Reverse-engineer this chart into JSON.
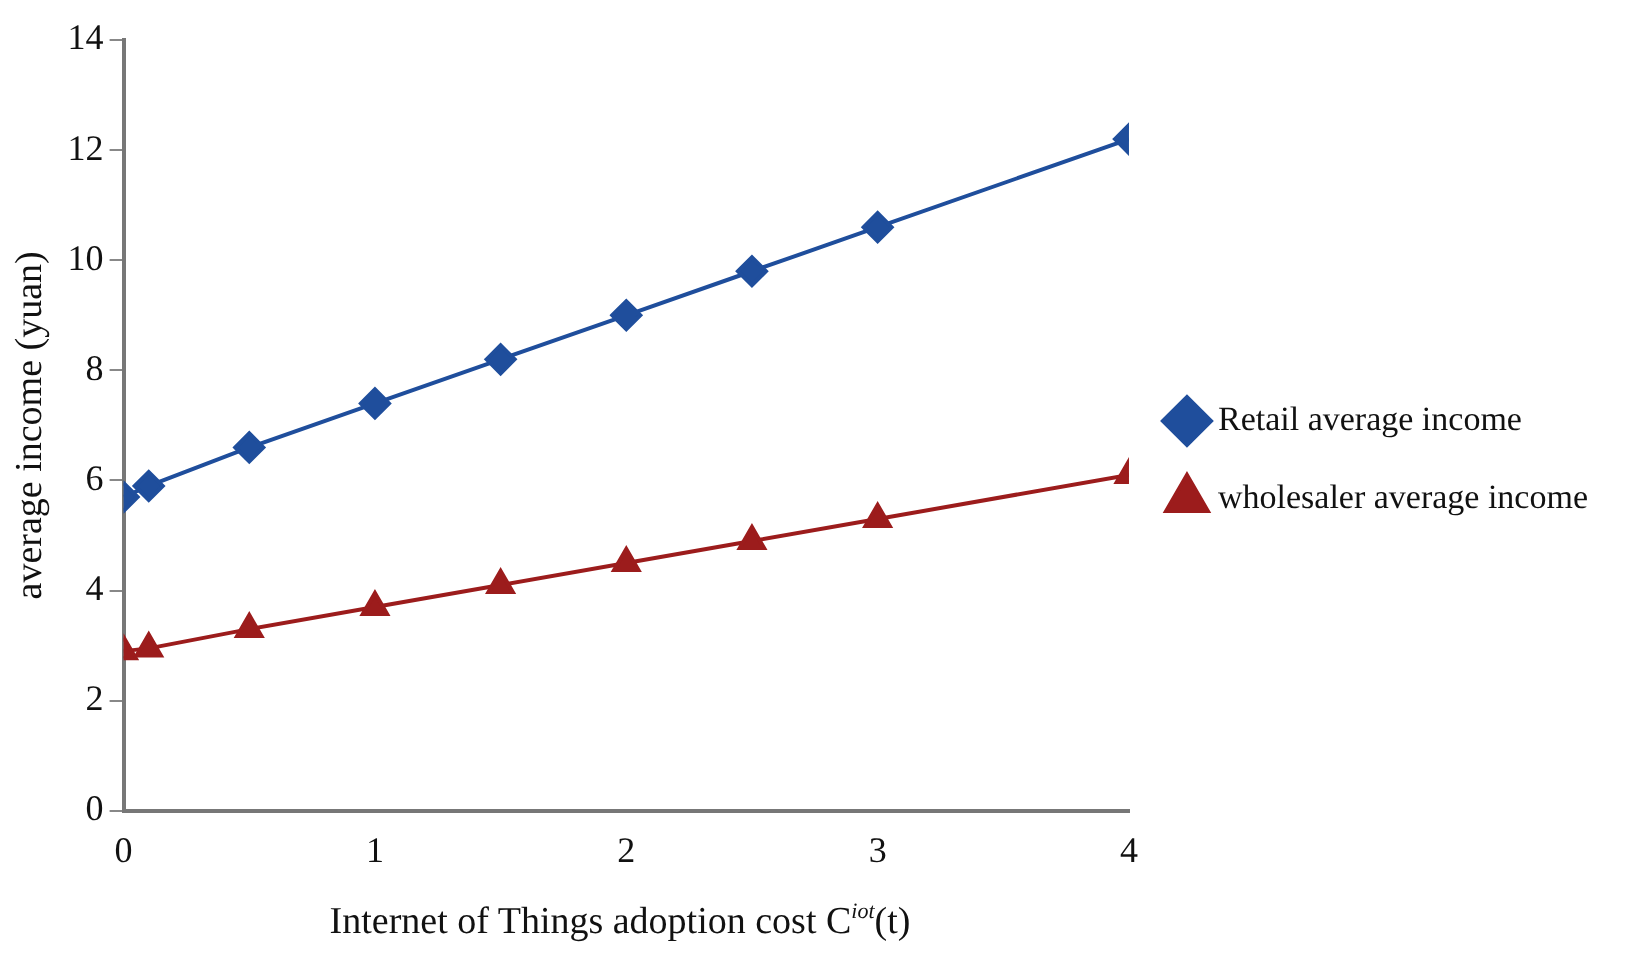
{
  "chart_data": {
    "type": "line",
    "xlabel": "Internet of Things adoption cost C$^{iot}$(t)",
    "ylabel": "average income (yuan)",
    "x": [
      0,
      0.1,
      0.5,
      1,
      1.5,
      2,
      2.5,
      3,
      4
    ],
    "xlim": [
      0,
      4
    ],
    "xticks": [
      0,
      1,
      2,
      3,
      4
    ],
    "ylim": [
      0,
      14
    ],
    "yticks": [
      0,
      2,
      4,
      6,
      8,
      10,
      12,
      14
    ],
    "grid": false,
    "legend": "right",
    "line_style": "solid",
    "series": [
      {
        "name": "Retail average income",
        "color": "#1f4e9c",
        "marker": "diamond",
        "values": [
          5.7,
          5.9,
          6.6,
          7.4,
          8.2,
          9.0,
          9.8,
          10.6,
          12.2
        ]
      },
      {
        "name": "wholesaler average income",
        "color": "#9c1c1c",
        "marker": "triangle",
        "values": [
          2.9,
          2.95,
          3.3,
          3.7,
          4.1,
          4.5,
          4.9,
          5.3,
          6.1
        ]
      }
    ]
  }
}
